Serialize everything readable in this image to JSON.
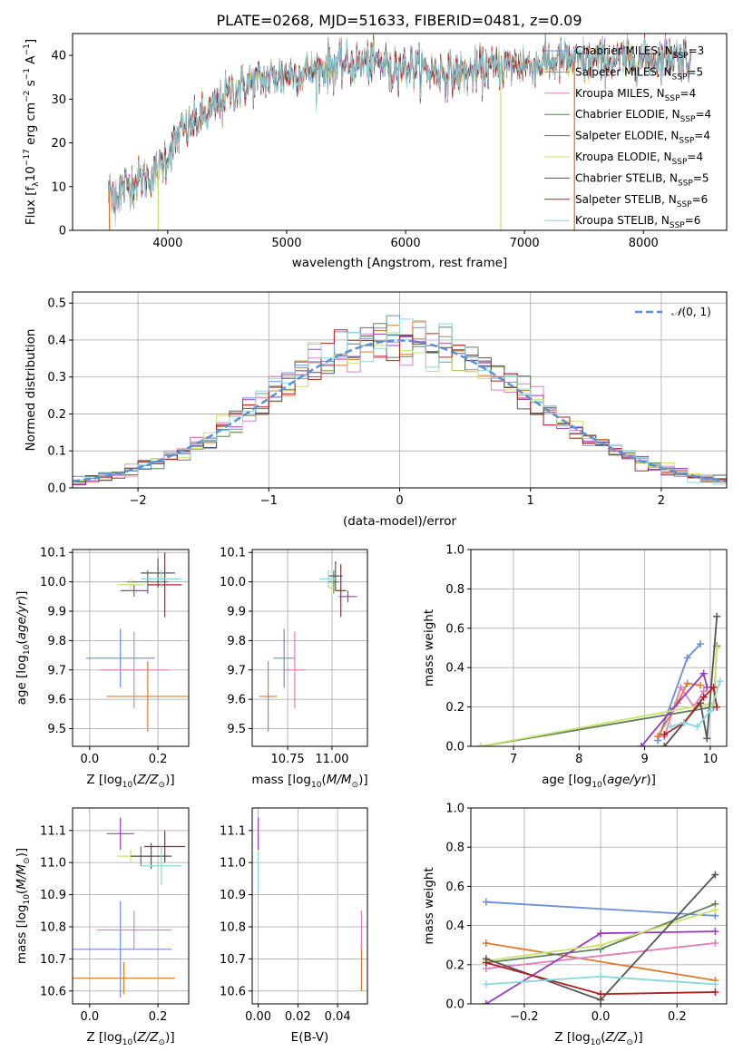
{
  "page_title": "PLATE=0268, MJD=51633, FIBERID=0481, z=0.09",
  "colors": {
    "MILES_Chabrier": "#6a8fd8",
    "MILES_Salpeter": "#e07a2a",
    "MILES_Kroupa": "#e17fbf",
    "ELODIE_Chabrier": "#5f7f5f",
    "ELODIE_Salpeter": "#9b3bbf",
    "ELODIE_Kroupa": "#c9e36b",
    "STELIB_Chabrier": "#555555",
    "STELIB_Salpeter": "#b22222",
    "STELIB_Kroupa": "#88d8e0"
  },
  "chart_data": [
    {
      "type": "line",
      "id": "spectrum",
      "title": "PLATE=0268, MJD=51633, FIBERID=0481, z=0.09",
      "xlabel": "wavelength [Angstrom, rest frame]",
      "ylabel": "Flux [f_λ 10^-17 erg cm^-2 s^-1 A^-1]",
      "xlim": [
        3200,
        8700
      ],
      "ylim": [
        0,
        45
      ],
      "xticks": [
        4000,
        5000,
        6000,
        7000,
        8000
      ],
      "yticks": [
        0,
        10,
        20,
        30,
        40
      ],
      "grid": false,
      "legend_position": "top-right",
      "legend": [
        "Chabrier MILES, N_SSP=3",
        "Salpeter MILES, N_SSP=5",
        "Kroupa MILES, N_SSP=4",
        "Chabrier ELODIE, N_SSP=4",
        "Salpeter ELODIE, N_SSP=4",
        "Kroupa ELODIE, N_SSP=4",
        "Chabrier STELIB, N_SSP=5",
        "Salpeter STELIB, N_SSP=6",
        "Kroupa STELIB, N_SSP=6"
      ],
      "continuum": [
        [
          3500,
          9
        ],
        [
          3600,
          10
        ],
        [
          3700,
          11
        ],
        [
          3800,
          12
        ],
        [
          3900,
          13
        ],
        [
          4000,
          17
        ],
        [
          4100,
          22
        ],
        [
          4200,
          24
        ],
        [
          4300,
          26
        ],
        [
          4400,
          28
        ],
        [
          4500,
          31
        ],
        [
          4700,
          34
        ],
        [
          4900,
          35
        ],
        [
          5100,
          36
        ],
        [
          5300,
          37
        ],
        [
          5500,
          38
        ],
        [
          5700,
          38.5
        ],
        [
          5900,
          38
        ],
        [
          6100,
          37
        ],
        [
          6300,
          36
        ],
        [
          6500,
          36
        ],
        [
          6700,
          37
        ],
        [
          6900,
          38
        ],
        [
          7100,
          38
        ],
        [
          7300,
          39
        ],
        [
          7500,
          38.5
        ],
        [
          7700,
          39
        ],
        [
          7900,
          39
        ],
        [
          8100,
          39.5
        ],
        [
          8300,
          40
        ],
        [
          8400,
          39
        ]
      ],
      "drops": [
        {
          "x": 3510,
          "to": 0
        },
        {
          "x": 3920,
          "to": 0
        },
        {
          "x": 6800,
          "to": 0
        },
        {
          "x": 7420,
          "to": 0
        }
      ]
    },
    {
      "type": "histogram",
      "id": "residuals",
      "xlabel": "(data-model)/error",
      "ylabel": "Normed distribution",
      "xlim": [
        -2.5,
        2.5
      ],
      "ylim": [
        0,
        0.53
      ],
      "xticks": [
        -2,
        -1,
        0,
        1,
        2
      ],
      "yticks": [
        0.0,
        0.1,
        0.2,
        0.3,
        0.4,
        0.5
      ],
      "grid": true,
      "legend_position": "top-right",
      "legend": [
        "𝒩(0, 1)"
      ],
      "gaussian": {
        "mean": 0,
        "sigma": 1
      },
      "bins": {
        "start": -2.5,
        "width": 0.1,
        "count": 50
      }
    },
    {
      "type": "errorbar",
      "id": "age_vs_Z",
      "xlabel": "Z [log10(Z/Z⊙)]",
      "ylabel": "age  [log10(age/yr)]",
      "xlim": [
        -0.05,
        0.29
      ],
      "ylim": [
        9.44,
        10.11
      ],
      "xticks": [
        0.0,
        0.2
      ],
      "yticks": [
        9.5,
        9.6,
        9.7,
        9.8,
        9.9,
        10.0,
        10.1
      ],
      "grid": true,
      "points": [
        {
          "series": "MILES_Chabrier",
          "x": 0.09,
          "y": 9.74,
          "xerr": 0.1,
          "yerr": 0.1
        },
        {
          "series": "MILES_Salpeter",
          "x": 0.17,
          "y": 9.61,
          "xerr": 0.12,
          "yerr": 0.12
        },
        {
          "series": "MILES_Kroupa",
          "x": 0.13,
          "y": 9.7,
          "xerr": 0.1,
          "yerr": 0.13
        },
        {
          "series": "ELODIE_Chabrier",
          "x": 0.17,
          "y": 10.0,
          "xerr": 0.06,
          "yerr": 0.04
        },
        {
          "series": "ELODIE_Salpeter",
          "x": 0.13,
          "y": 9.97,
          "xerr": 0.04,
          "yerr": 0.02
        },
        {
          "series": "ELODIE_Kroupa",
          "x": 0.12,
          "y": 9.99,
          "xerr": 0.04,
          "yerr": 0.02
        },
        {
          "series": "STELIB_Chabrier",
          "x": 0.2,
          "y": 10.03,
          "xerr": 0.05,
          "yerr": 0.05
        },
        {
          "series": "STELIB_Salpeter",
          "x": 0.22,
          "y": 9.99,
          "xerr": 0.05,
          "yerr": 0.11
        },
        {
          "series": "STELIB_Kroupa",
          "x": 0.21,
          "y": 10.01,
          "xerr": 0.06,
          "yerr": 0.03
        }
      ]
    },
    {
      "type": "errorbar",
      "id": "age_vs_mass",
      "xlabel": "mass [log10(M/M⊙)]",
      "ylabel": "",
      "xlim": [
        10.55,
        11.2
      ],
      "ylim": [
        9.44,
        10.11
      ],
      "xticks": [
        10.75,
        11.0
      ],
      "yticks": [
        9.5,
        9.6,
        9.7,
        9.8,
        9.9,
        10.0,
        10.1
      ],
      "grid": true,
      "points": [
        {
          "series": "MILES_Chabrier",
          "x": 10.73,
          "y": 9.74,
          "xerr": 0.06,
          "yerr": 0.1
        },
        {
          "series": "MILES_Salpeter",
          "x": 10.64,
          "y": 9.61,
          "xerr": 0.05,
          "yerr": 0.12
        },
        {
          "series": "MILES_Kroupa",
          "x": 10.79,
          "y": 9.7,
          "xerr": 0.06,
          "yerr": 0.13
        },
        {
          "series": "ELODIE_Chabrier",
          "x": 11.01,
          "y": 10.0,
          "xerr": 0.03,
          "yerr": 0.04
        },
        {
          "series": "ELODIE_Salpeter",
          "x": 11.09,
          "y": 9.95,
          "xerr": 0.05,
          "yerr": 0.02
        },
        {
          "series": "ELODIE_Kroupa",
          "x": 11.0,
          "y": 9.98,
          "xerr": 0.02,
          "yerr": 0.02
        },
        {
          "series": "STELIB_Chabrier",
          "x": 11.02,
          "y": 10.02,
          "xerr": 0.04,
          "yerr": 0.05
        },
        {
          "series": "STELIB_Salpeter",
          "x": 11.05,
          "y": 9.97,
          "xerr": 0.03,
          "yerr": 0.09
        },
        {
          "series": "STELIB_Kroupa",
          "x": 10.98,
          "y": 10.01,
          "xerr": 0.05,
          "yerr": 0.03
        }
      ]
    },
    {
      "type": "line",
      "id": "massweight_vs_age",
      "xlabel": "age  [log10(age/yr)]",
      "ylabel": "mass weight",
      "xlim": [
        6.35,
        10.25
      ],
      "ylim": [
        0,
        1
      ],
      "xticks": [
        7,
        8,
        9,
        10
      ],
      "yticks": [
        0.0,
        0.2,
        0.4,
        0.6,
        0.8,
        1.0
      ],
      "grid": true,
      "series": [
        {
          "series": "MILES_Chabrier",
          "x": [
            9.2,
            9.65,
            9.85
          ],
          "y": [
            0.03,
            0.45,
            0.52
          ]
        },
        {
          "series": "MILES_Salpeter",
          "x": [
            9.2,
            9.5,
            9.65,
            9.85
          ],
          "y": [
            0.05,
            0.22,
            0.32,
            0.31
          ]
        },
        {
          "series": "MILES_Kroupa",
          "x": [
            9.3,
            9.55,
            9.75,
            9.9
          ],
          "y": [
            0.05,
            0.3,
            0.2,
            0.28
          ]
        },
        {
          "series": "ELODIE_Chabrier",
          "x": [
            6.5,
            10.05,
            10.1
          ],
          "y": [
            0.0,
            0.2,
            0.51
          ]
        },
        {
          "series": "ELODIE_Salpeter",
          "x": [
            8.95,
            9.4,
            9.9,
            9.95
          ],
          "y": [
            0.0,
            0.18,
            0.37,
            0.3
          ]
        },
        {
          "series": "ELODIE_Kroupa",
          "x": [
            6.5,
            10.05,
            10.1
          ],
          "y": [
            0.0,
            0.22,
            0.5
          ]
        },
        {
          "series": "STELIB_Chabrier",
          "x": [
            9.3,
            9.85,
            9.95,
            10.1
          ],
          "y": [
            0.0,
            0.22,
            0.04,
            0.66
          ]
        },
        {
          "series": "STELIB_Salpeter",
          "x": [
            9.3,
            9.6,
            9.9,
            10.05,
            10.1
          ],
          "y": [
            0.06,
            0.12,
            0.25,
            0.3,
            0.2
          ]
        },
        {
          "series": "STELIB_Kroupa",
          "x": [
            9.4,
            9.6,
            9.8,
            10.0,
            10.15
          ],
          "y": [
            0.1,
            0.12,
            0.1,
            0.18,
            0.33
          ]
        }
      ]
    },
    {
      "type": "errorbar",
      "id": "mass_vs_Z",
      "xlabel": "Z [log10(Z/Z⊙)]",
      "ylabel": "mass [log10(M/M⊙)]",
      "xlim": [
        -0.05,
        0.29
      ],
      "ylim": [
        10.56,
        11.17
      ],
      "xticks": [
        0.0,
        0.2
      ],
      "yticks": [
        10.6,
        10.7,
        10.8,
        10.9,
        11.0,
        11.1
      ],
      "grid": true,
      "points": [
        {
          "series": "MILES_Chabrier",
          "x": 0.09,
          "y": 10.73,
          "xerr": 0.15,
          "yerr": 0.15
        },
        {
          "series": "MILES_Salpeter",
          "x": 0.1,
          "y": 10.64,
          "xerr": 0.15,
          "yerr": 0.05
        },
        {
          "series": "MILES_Kroupa",
          "x": 0.13,
          "y": 10.79,
          "xerr": 0.11,
          "yerr": 0.06
        },
        {
          "series": "ELODIE_Chabrier",
          "x": 0.15,
          "y": 11.02,
          "xerr": 0.03,
          "yerr": 0.03
        },
        {
          "series": "ELODIE_Salpeter",
          "x": 0.09,
          "y": 11.09,
          "xerr": 0.04,
          "yerr": 0.05
        },
        {
          "series": "ELODIE_Kroupa",
          "x": 0.12,
          "y": 11.02,
          "xerr": 0.04,
          "yerr": 0.02
        },
        {
          "series": "STELIB_Chabrier",
          "x": 0.18,
          "y": 11.02,
          "xerr": 0.06,
          "yerr": 0.04
        },
        {
          "series": "STELIB_Salpeter",
          "x": 0.22,
          "y": 11.05,
          "xerr": 0.06,
          "yerr": 0.05
        },
        {
          "series": "STELIB_Kroupa",
          "x": 0.21,
          "y": 10.99,
          "xerr": 0.06,
          "yerr": 0.06
        }
      ]
    },
    {
      "type": "errorbar",
      "id": "mass_vs_EBV",
      "xlabel": "E(B-V)",
      "ylabel": "",
      "xlim": [
        -0.003,
        0.055
      ],
      "ylim": [
        10.56,
        11.17
      ],
      "xticks": [
        0.0,
        0.02,
        0.04
      ],
      "yticks": [
        10.6,
        10.7,
        10.8,
        10.9,
        11.0,
        11.1
      ],
      "grid": true,
      "points": [
        {
          "series": "MILES_Salpeter",
          "x": 0.052,
          "y": 10.68,
          "xerr": 0.0,
          "yerr": 0.08
        },
        {
          "series": "MILES_Kroupa",
          "x": 0.052,
          "y": 10.79,
          "xerr": 0.0,
          "yerr": 0.06
        },
        {
          "series": "ELODIE_Salpeter",
          "x": 0.0,
          "y": 11.09,
          "xerr": 0.0,
          "yerr": 0.05
        },
        {
          "series": "ELODIE_Kroupa",
          "x": 0.0,
          "y": 11.0,
          "xerr": 0.0,
          "yerr": 0.04
        },
        {
          "series": "STELIB_Kroupa",
          "x": 0.0,
          "y": 10.97,
          "xerr": 0.0,
          "yerr": 0.06
        }
      ]
    },
    {
      "type": "line",
      "id": "massweight_vs_Z",
      "xlabel": "Z [log10(Z/Z⊙)]",
      "ylabel": "mass weight",
      "xlim": [
        -0.34,
        0.33
      ],
      "ylim": [
        0,
        1
      ],
      "xticks": [
        -0.2,
        0.0,
        0.2
      ],
      "yticks": [
        0.0,
        0.2,
        0.4,
        0.6,
        0.8,
        1.0
      ],
      "grid": true,
      "series": [
        {
          "series": "MILES_Chabrier",
          "x": [
            -0.3,
            0.3
          ],
          "y": [
            0.52,
            0.45
          ]
        },
        {
          "series": "MILES_Salpeter",
          "x": [
            -0.3,
            0.3
          ],
          "y": [
            0.31,
            0.12
          ]
        },
        {
          "series": "MILES_Kroupa",
          "x": [
            -0.3,
            0.3
          ],
          "y": [
            0.18,
            0.31
          ]
        },
        {
          "series": "ELODIE_Chabrier",
          "x": [
            -0.3,
            0.0,
            0.3
          ],
          "y": [
            0.21,
            0.28,
            0.51
          ]
        },
        {
          "series": "ELODIE_Salpeter",
          "x": [
            -0.3,
            0.0,
            0.3
          ],
          "y": [
            0.0,
            0.36,
            0.37
          ]
        },
        {
          "series": "ELODIE_Kroupa",
          "x": [
            -0.3,
            0.0,
            0.3
          ],
          "y": [
            0.22,
            0.3,
            0.48
          ]
        },
        {
          "series": "STELIB_Chabrier",
          "x": [
            -0.3,
            0.0,
            0.3
          ],
          "y": [
            0.23,
            0.02,
            0.66
          ]
        },
        {
          "series": "STELIB_Salpeter",
          "x": [
            -0.3,
            0.0,
            0.3
          ],
          "y": [
            0.21,
            0.05,
            0.06
          ]
        },
        {
          "series": "STELIB_Kroupa",
          "x": [
            -0.3,
            0.0,
            0.3
          ],
          "y": [
            0.1,
            0.14,
            0.1
          ]
        }
      ]
    }
  ],
  "series_order": [
    "MILES_Chabrier",
    "MILES_Salpeter",
    "MILES_Kroupa",
    "ELODIE_Chabrier",
    "ELODIE_Salpeter",
    "ELODIE_Kroupa",
    "STELIB_Chabrier",
    "STELIB_Salpeter",
    "STELIB_Kroupa"
  ]
}
